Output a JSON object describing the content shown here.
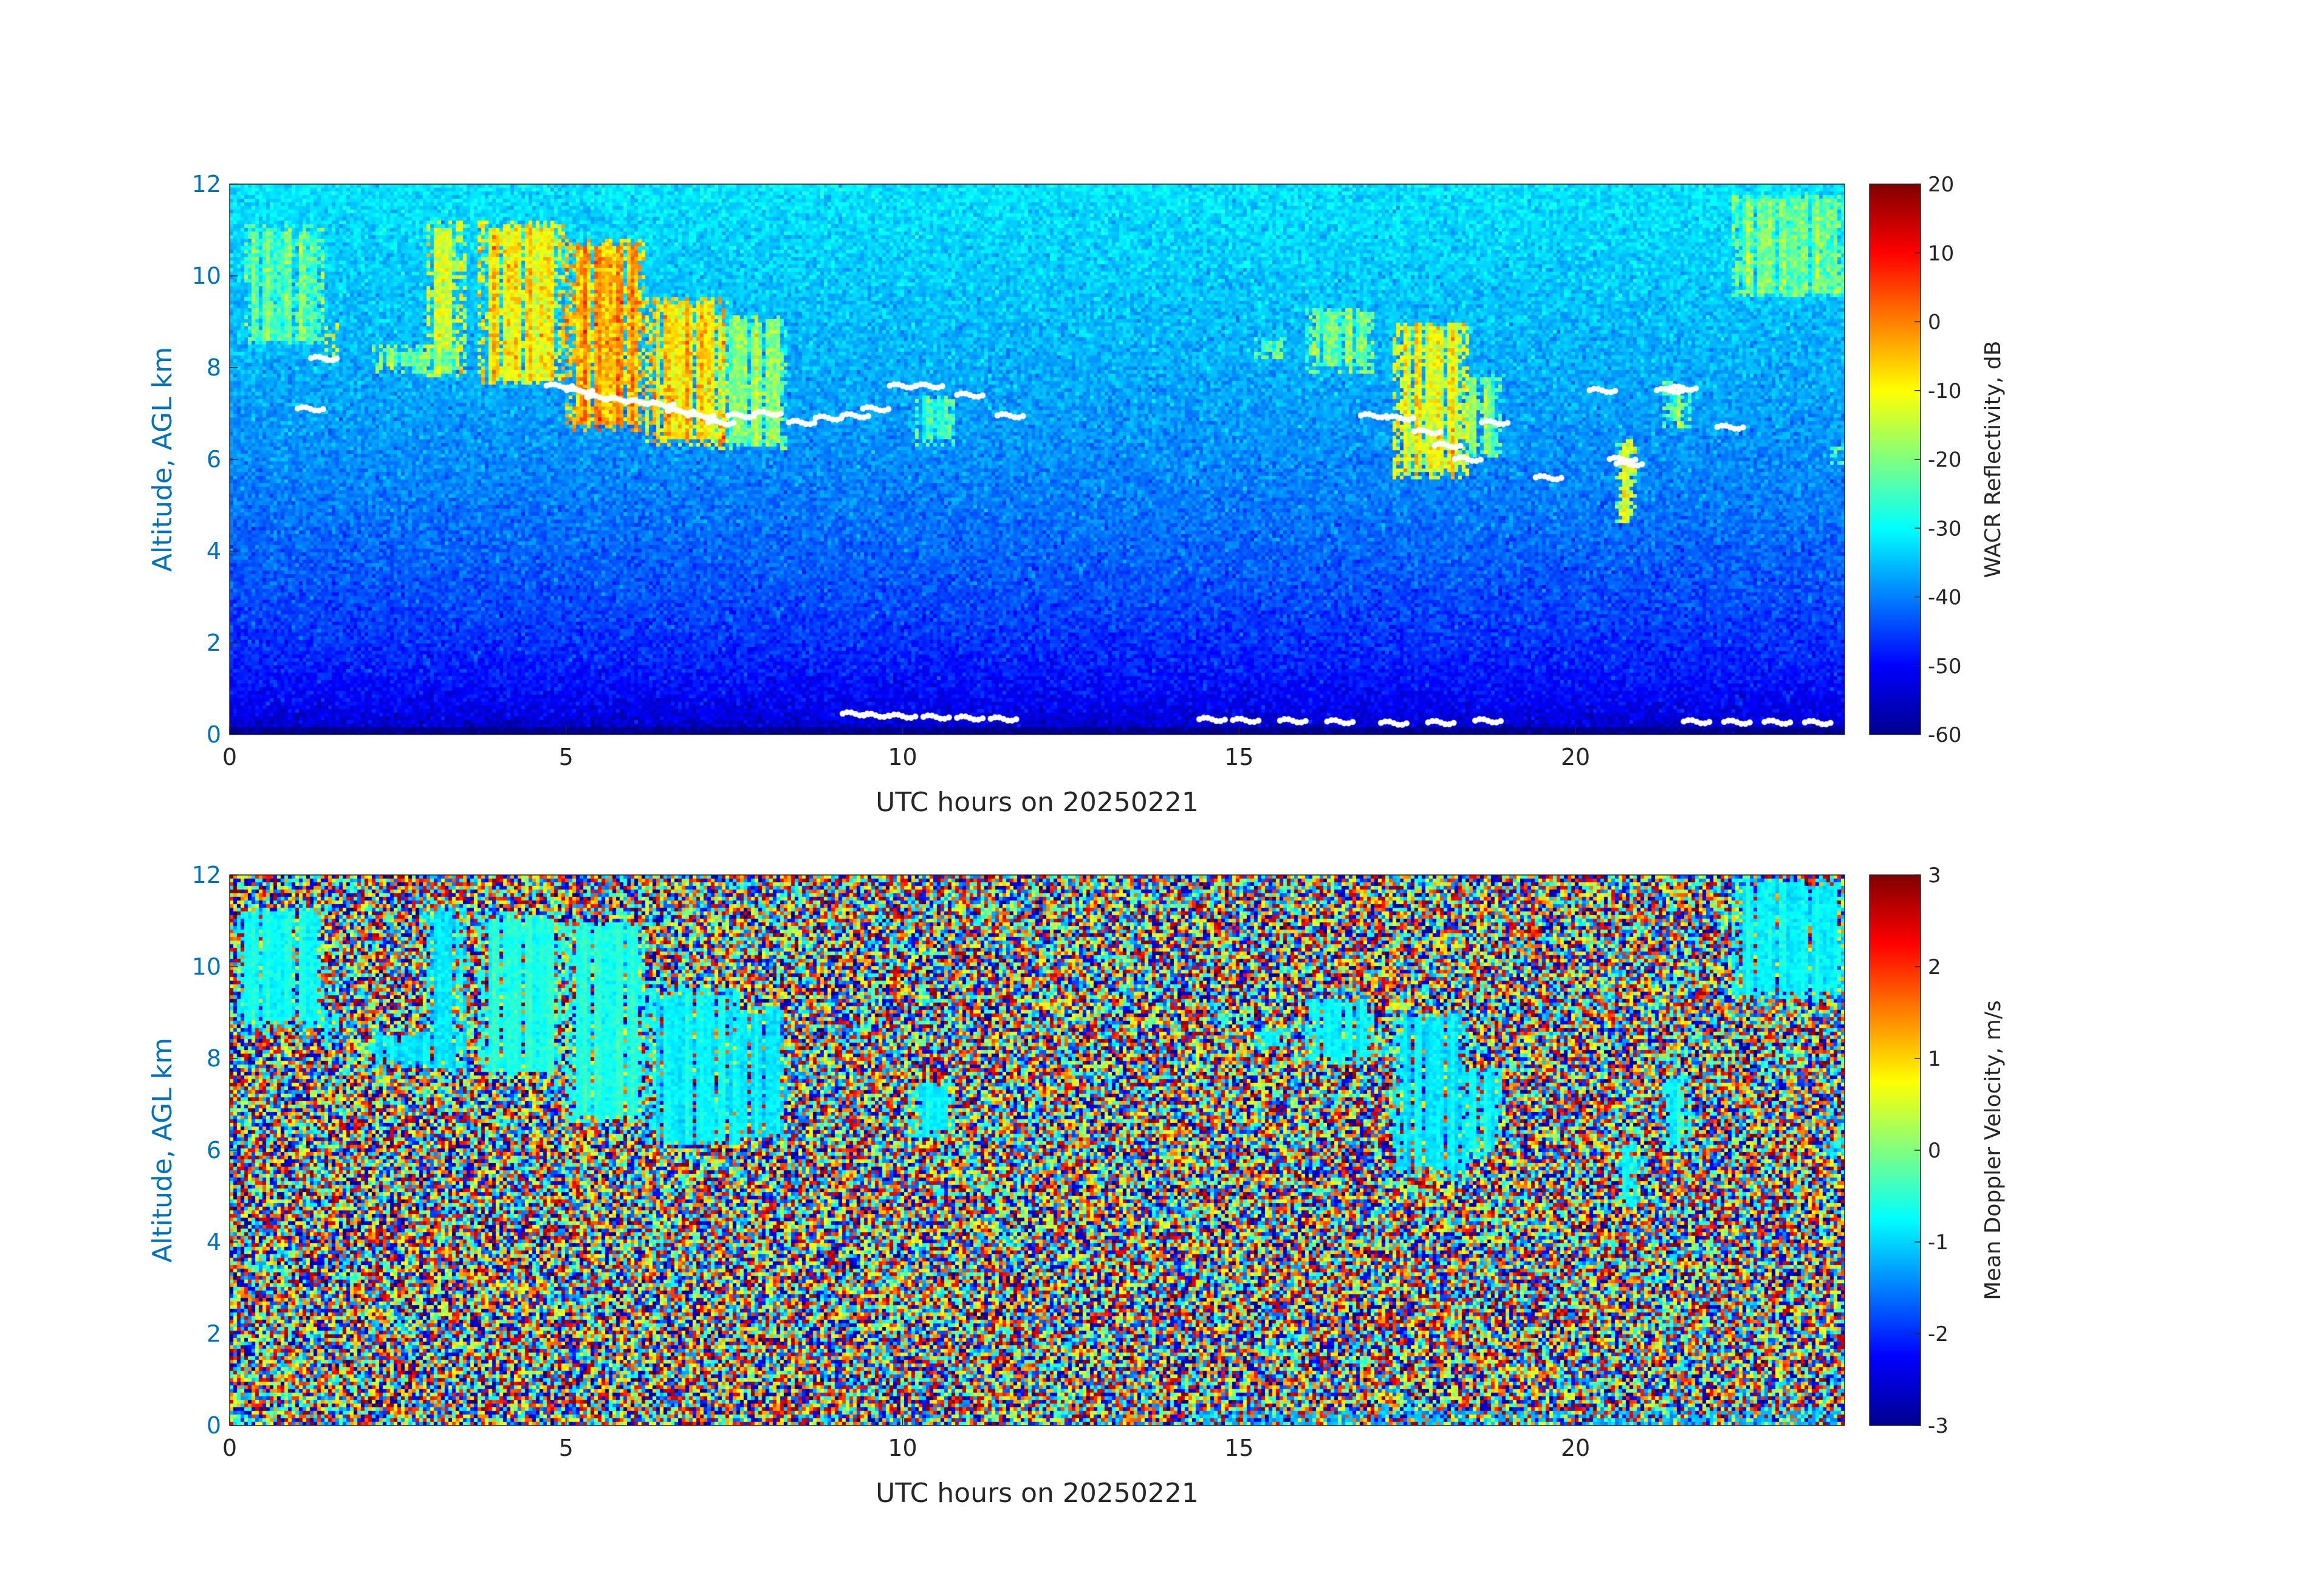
{
  "figure": {
    "background": "#ffffff",
    "ylabel_color": "#0072bd",
    "tick_color": "#262626"
  },
  "chart_data": [
    {
      "type": "heatmap",
      "id": "reflectivity",
      "xlabel": "UTC hours on 20250221",
      "ylabel": "Altitude, AGL km",
      "xlim": [
        0,
        24
      ],
      "ylim": [
        0,
        12
      ],
      "xticks": [
        0,
        5,
        10,
        15,
        20
      ],
      "yticks": [
        0,
        2,
        4,
        6,
        8,
        10,
        12
      ],
      "colorbar": {
        "label": "WACR Reflectivity, dB",
        "colormap": "jet",
        "clim": [
          -60,
          20
        ],
        "ticks": [
          20,
          10,
          0,
          -10,
          -20,
          -30,
          -40,
          -50,
          -60
        ]
      },
      "background_field": {
        "near_ground_dB": -58,
        "top_dB": -32,
        "noise_dB": 4
      },
      "cloud_features": [
        {
          "t0": 0.2,
          "t1": 1.4,
          "z0": 8.5,
          "z1": 11.1,
          "dB": -24
        },
        {
          "t0": 1.4,
          "t1": 1.6,
          "z0": 8.1,
          "z1": 9.0,
          "dB": -14
        },
        {
          "t0": 2.1,
          "t1": 3.4,
          "z0": 7.9,
          "z1": 8.5,
          "dB": -22
        },
        {
          "t0": 2.9,
          "t1": 3.5,
          "z0": 7.8,
          "z1": 11.2,
          "dB": -14
        },
        {
          "t0": 3.7,
          "t1": 5.0,
          "z0": 7.6,
          "z1": 11.2,
          "dB": -10
        },
        {
          "t0": 5.0,
          "t1": 6.2,
          "z0": 6.6,
          "z1": 10.8,
          "dB": -4
        },
        {
          "t0": 6.2,
          "t1": 7.4,
          "z0": 6.3,
          "z1": 9.5,
          "dB": -8
        },
        {
          "t0": 7.1,
          "t1": 8.3,
          "z0": 6.2,
          "z1": 9.1,
          "dB": -20
        },
        {
          "t0": 10.2,
          "t1": 10.8,
          "z0": 6.3,
          "z1": 7.4,
          "dB": -26
        },
        {
          "t0": 15.2,
          "t1": 15.7,
          "z0": 8.2,
          "z1": 8.7,
          "dB": -24
        },
        {
          "t0": 16.0,
          "t1": 17.0,
          "z0": 7.9,
          "z1": 9.3,
          "dB": -22
        },
        {
          "t0": 17.3,
          "t1": 18.4,
          "z0": 5.6,
          "z1": 9.0,
          "dB": -12
        },
        {
          "t0": 18.3,
          "t1": 18.9,
          "z0": 6.0,
          "z1": 7.9,
          "dB": -22
        },
        {
          "t0": 20.6,
          "t1": 20.9,
          "z0": 4.6,
          "z1": 6.4,
          "dB": -14
        },
        {
          "t0": 21.3,
          "t1": 21.7,
          "z0": 6.7,
          "z1": 7.7,
          "dB": -22
        },
        {
          "t0": 22.3,
          "t1": 24.0,
          "z0": 9.5,
          "z1": 11.8,
          "dB": -22
        },
        {
          "t0": 23.8,
          "t1": 24.0,
          "z0": 5.9,
          "z1": 6.3,
          "dB": -25
        }
      ],
      "white_markers": [
        [
          4.9,
          7.6
        ],
        [
          5.2,
          7.5
        ],
        [
          5.5,
          7.35
        ],
        [
          5.8,
          7.3
        ],
        [
          6.1,
          7.25
        ],
        [
          6.4,
          7.2
        ],
        [
          6.7,
          7.05
        ],
        [
          7.0,
          6.95
        ],
        [
          7.3,
          6.8
        ],
        [
          7.6,
          6.95
        ],
        [
          8.0,
          7.0
        ],
        [
          8.5,
          6.8
        ],
        [
          8.9,
          6.9
        ],
        [
          9.3,
          6.95
        ],
        [
          9.6,
          7.1
        ],
        [
          10.0,
          7.6
        ],
        [
          10.4,
          7.6
        ],
        [
          11.0,
          7.4
        ],
        [
          11.6,
          6.95
        ],
        [
          1.2,
          7.1
        ],
        [
          1.4,
          8.2
        ],
        [
          17.0,
          6.95
        ],
        [
          17.4,
          6.9
        ],
        [
          17.8,
          6.6
        ],
        [
          18.1,
          6.3
        ],
        [
          18.4,
          6.0
        ],
        [
          18.8,
          6.8
        ],
        [
          19.6,
          5.6
        ],
        [
          20.4,
          7.5
        ],
        [
          20.7,
          6.0
        ],
        [
          20.8,
          5.9
        ],
        [
          21.4,
          7.5
        ],
        [
          21.6,
          7.55
        ],
        [
          22.3,
          6.7
        ],
        [
          9.3,
          0.45
        ],
        [
          9.6,
          0.42
        ],
        [
          10.0,
          0.4
        ],
        [
          10.5,
          0.38
        ],
        [
          11.0,
          0.36
        ],
        [
          11.5,
          0.34
        ],
        [
          14.6,
          0.33
        ],
        [
          15.1,
          0.31
        ],
        [
          15.8,
          0.3
        ],
        [
          16.5,
          0.28
        ],
        [
          17.3,
          0.25
        ],
        [
          18.0,
          0.26
        ],
        [
          18.7,
          0.3
        ],
        [
          21.8,
          0.28
        ],
        [
          22.4,
          0.27
        ],
        [
          23.0,
          0.27
        ],
        [
          23.6,
          0.26
        ]
      ]
    },
    {
      "type": "heatmap",
      "id": "doppler",
      "xlabel": "UTC hours on 20250221",
      "ylabel": "Altitude, AGL km",
      "xlim": [
        0,
        24
      ],
      "ylim": [
        0,
        12
      ],
      "xticks": [
        0,
        5,
        10,
        15,
        20
      ],
      "yticks": [
        0,
        2,
        4,
        6,
        8,
        10,
        12
      ],
      "colorbar": {
        "label": "Mean Doppler Velocity, m/s",
        "colormap": "jet",
        "clim": [
          -3,
          3
        ],
        "ticks": [
          3,
          2,
          1,
          0,
          -1,
          -2,
          -3
        ]
      },
      "background_field": "random noise over full range",
      "cloud_features": [
        {
          "t0": 0.1,
          "t1": 1.4,
          "z0": 8.7,
          "z1": 11.3,
          "ms": -0.7
        },
        {
          "t0": 1.3,
          "t1": 1.6,
          "z0": 8.2,
          "z1": 9.0,
          "ms": -0.8
        },
        {
          "t0": 2.1,
          "t1": 3.5,
          "z0": 7.8,
          "z1": 8.6,
          "ms": -0.9
        },
        {
          "t0": 2.9,
          "t1": 3.5,
          "z0": 7.8,
          "z1": 11.3,
          "ms": -0.9
        },
        {
          "t0": 3.7,
          "t1": 5.0,
          "z0": 7.6,
          "z1": 11.2,
          "ms": -0.6
        },
        {
          "t0": 5.0,
          "t1": 6.2,
          "z0": 6.6,
          "z1": 11.0,
          "ms": -0.6
        },
        {
          "t0": 6.2,
          "t1": 7.6,
          "z0": 6.1,
          "z1": 9.5,
          "ms": -0.8
        },
        {
          "t0": 7.4,
          "t1": 8.3,
          "z0": 6.3,
          "z1": 9.1,
          "ms": -0.9
        },
        {
          "t0": 10.1,
          "t1": 10.8,
          "z0": 6.3,
          "z1": 7.5,
          "ms": -0.8
        },
        {
          "t0": 15.2,
          "t1": 15.7,
          "z0": 8.2,
          "z1": 8.7,
          "ms": -0.8
        },
        {
          "t0": 16.0,
          "t1": 17.0,
          "z0": 7.9,
          "z1": 9.3,
          "ms": -0.8
        },
        {
          "t0": 17.3,
          "t1": 18.4,
          "z0": 5.5,
          "z1": 9.0,
          "ms": -0.9
        },
        {
          "t0": 18.3,
          "t1": 18.9,
          "z0": 5.9,
          "z1": 7.8,
          "ms": -0.8
        },
        {
          "t0": 20.6,
          "t1": 20.9,
          "z0": 4.8,
          "z1": 6.2,
          "ms": -0.8
        },
        {
          "t0": 21.3,
          "t1": 21.7,
          "z0": 6.0,
          "z1": 7.6,
          "ms": -0.7
        },
        {
          "t0": 22.3,
          "t1": 24.0,
          "z0": 9.3,
          "z1": 11.9,
          "ms": -0.8
        },
        {
          "t0": 23.7,
          "t1": 24.0,
          "z0": 5.9,
          "z1": 6.3,
          "ms": -0.8
        },
        {
          "t0": 14.4,
          "t1": 24.0,
          "z0": 0.0,
          "z1": 0.3,
          "ms": -1.2
        }
      ]
    }
  ]
}
